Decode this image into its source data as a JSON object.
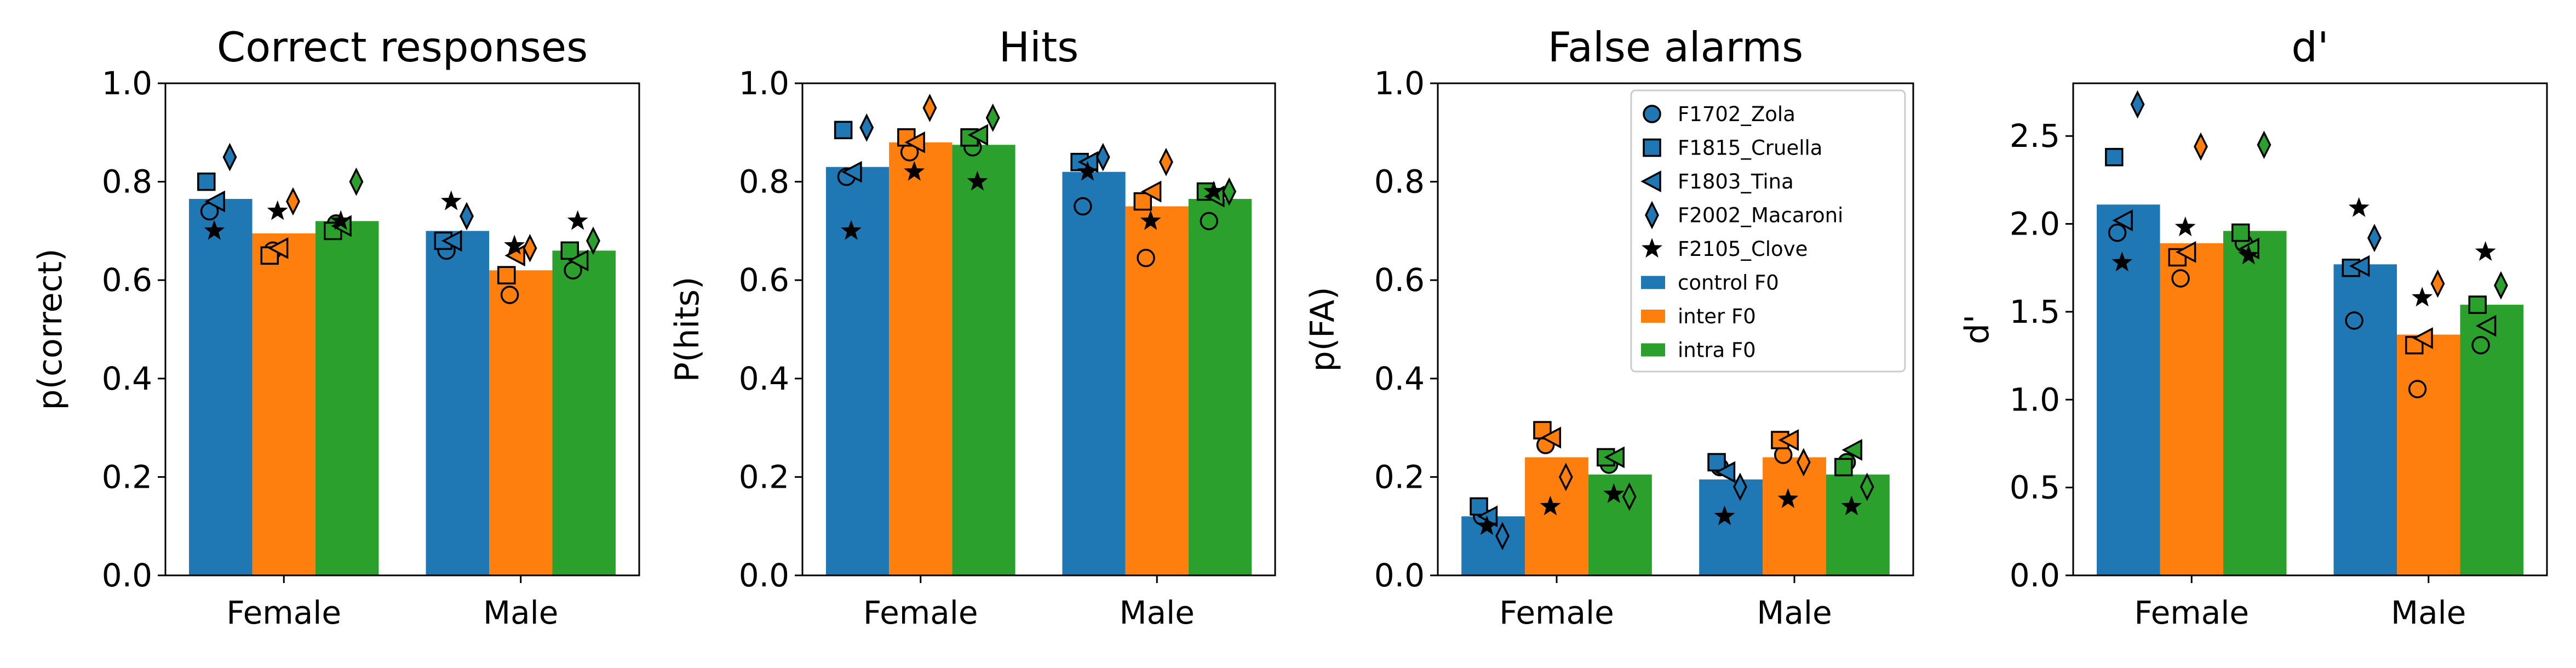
{
  "colors": {
    "control": "#1f77b4",
    "inter": "#ff7f0e",
    "intra": "#2ca02c"
  },
  "legend": {
    "placement": "upper-right of third panel",
    "animals": [
      {
        "label": "F1702_Zola",
        "marker": "circle"
      },
      {
        "label": "F1815_Cruella",
        "marker": "square"
      },
      {
        "label": "F1803_Tina",
        "marker": "triangle-left"
      },
      {
        "label": "F2002_Macaroni",
        "marker": "thin-diamond"
      },
      {
        "label": "F2105_Clove",
        "marker": "star"
      }
    ],
    "conditions": [
      {
        "label": "control F0",
        "color": "#1f77b4"
      },
      {
        "label": "inter F0",
        "color": "#ff7f0e"
      },
      {
        "label": "intra F0",
        "color": "#2ca02c"
      }
    ]
  },
  "chart_data": [
    {
      "type": "bar",
      "title": "Correct responses",
      "ylabel": "p(correct)",
      "ylim": [
        0,
        1.0
      ],
      "yticks": [
        "0.0",
        "0.2",
        "0.4",
        "0.6",
        "0.8",
        "1.0"
      ],
      "categories": [
        "Female",
        "Male"
      ],
      "series": [
        {
          "name": "control F0",
          "values": [
            0.765,
            0.7
          ],
          "points": [
            [
              0.74,
              0.66
            ],
            [
              0.8,
              0.68
            ],
            [
              0.76,
              0.68
            ],
            [
              0.85,
              0.73
            ],
            [
              0.7,
              0.76
            ]
          ]
        },
        {
          "name": "inter F0",
          "values": [
            0.695,
            0.62
          ],
          "points": [
            [
              0.66,
              0.57
            ],
            [
              0.65,
              0.61
            ],
            [
              0.665,
              0.65
            ],
            [
              0.76,
              0.665
            ],
            [
              0.74,
              0.67
            ]
          ]
        },
        {
          "name": "intra F0",
          "values": [
            0.72,
            0.66
          ],
          "points": [
            [
              0.715,
              0.62
            ],
            [
              0.7,
              0.66
            ],
            [
              0.71,
              0.64
            ],
            [
              0.8,
              0.68
            ],
            [
              0.72,
              0.72
            ]
          ]
        }
      ]
    },
    {
      "type": "bar",
      "title": "Hits",
      "ylabel": "P(hits)",
      "ylim": [
        0,
        1.0
      ],
      "yticks": [
        "0.0",
        "0.2",
        "0.4",
        "0.6",
        "0.8",
        "1.0"
      ],
      "categories": [
        "Female",
        "Male"
      ],
      "series": [
        {
          "name": "control F0",
          "values": [
            0.83,
            0.82
          ],
          "points": [
            [
              0.81,
              0.75
            ],
            [
              0.905,
              0.84
            ],
            [
              0.82,
              0.84
            ],
            [
              0.91,
              0.85
            ],
            [
              0.7,
              0.82
            ]
          ]
        },
        {
          "name": "inter F0",
          "values": [
            0.88,
            0.75
          ],
          "points": [
            [
              0.86,
              0.645
            ],
            [
              0.89,
              0.76
            ],
            [
              0.88,
              0.78
            ],
            [
              0.95,
              0.84
            ],
            [
              0.82,
              0.72
            ]
          ]
        },
        {
          "name": "intra F0",
          "values": [
            0.875,
            0.765
          ],
          "points": [
            [
              0.87,
              0.72
            ],
            [
              0.89,
              0.78
            ],
            [
              0.895,
              0.77
            ],
            [
              0.93,
              0.78
            ],
            [
              0.8,
              0.78
            ]
          ]
        }
      ]
    },
    {
      "type": "bar",
      "title": "False alarms",
      "ylabel": "p(FA)",
      "ylim": [
        0,
        1.0
      ],
      "yticks": [
        "0.0",
        "0.2",
        "0.4",
        "0.6",
        "0.8",
        "1.0"
      ],
      "categories": [
        "Female",
        "Male"
      ],
      "series": [
        {
          "name": "control F0",
          "values": [
            0.12,
            0.195
          ],
          "points": [
            [
              0.12,
              0.22
            ],
            [
              0.14,
              0.23
            ],
            [
              0.12,
              0.21
            ],
            [
              0.08,
              0.18
            ],
            [
              0.1,
              0.12
            ]
          ]
        },
        {
          "name": "inter F0",
          "values": [
            0.24,
            0.24
          ],
          "points": [
            [
              0.265,
              0.245
            ],
            [
              0.295,
              0.275
            ],
            [
              0.28,
              0.275
            ],
            [
              0.2,
              0.23
            ],
            [
              0.14,
              0.155
            ]
          ]
        },
        {
          "name": "intra F0",
          "values": [
            0.205,
            0.205
          ],
          "points": [
            [
              0.225,
              0.23
            ],
            [
              0.24,
              0.22
            ],
            [
              0.24,
              0.255
            ],
            [
              0.16,
              0.18
            ],
            [
              0.165,
              0.14
            ]
          ]
        }
      ]
    },
    {
      "type": "bar",
      "title": "d'",
      "ylabel": "d'",
      "ylim": [
        0,
        2.8
      ],
      "yticks": [
        "0.0",
        "0.5",
        "1.0",
        "1.5",
        "2.0",
        "2.5"
      ],
      "categories": [
        "Female",
        "Male"
      ],
      "series": [
        {
          "name": "control F0",
          "values": [
            2.11,
            1.77
          ],
          "points": [
            [
              1.95,
              1.45
            ],
            [
              2.38,
              1.75
            ],
            [
              2.02,
              1.76
            ],
            [
              2.68,
              1.92
            ],
            [
              1.78,
              2.09
            ]
          ]
        },
        {
          "name": "inter F0",
          "values": [
            1.89,
            1.37
          ],
          "points": [
            [
              1.69,
              1.06
            ],
            [
              1.81,
              1.31
            ],
            [
              1.84,
              1.35
            ],
            [
              2.44,
              1.66
            ],
            [
              1.98,
              1.58
            ]
          ]
        },
        {
          "name": "intra F0",
          "values": [
            1.96,
            1.54
          ],
          "points": [
            [
              1.89,
              1.31
            ],
            [
              1.95,
              1.54
            ],
            [
              1.86,
              1.42
            ],
            [
              2.45,
              1.65
            ],
            [
              1.82,
              1.84
            ]
          ]
        }
      ]
    }
  ]
}
